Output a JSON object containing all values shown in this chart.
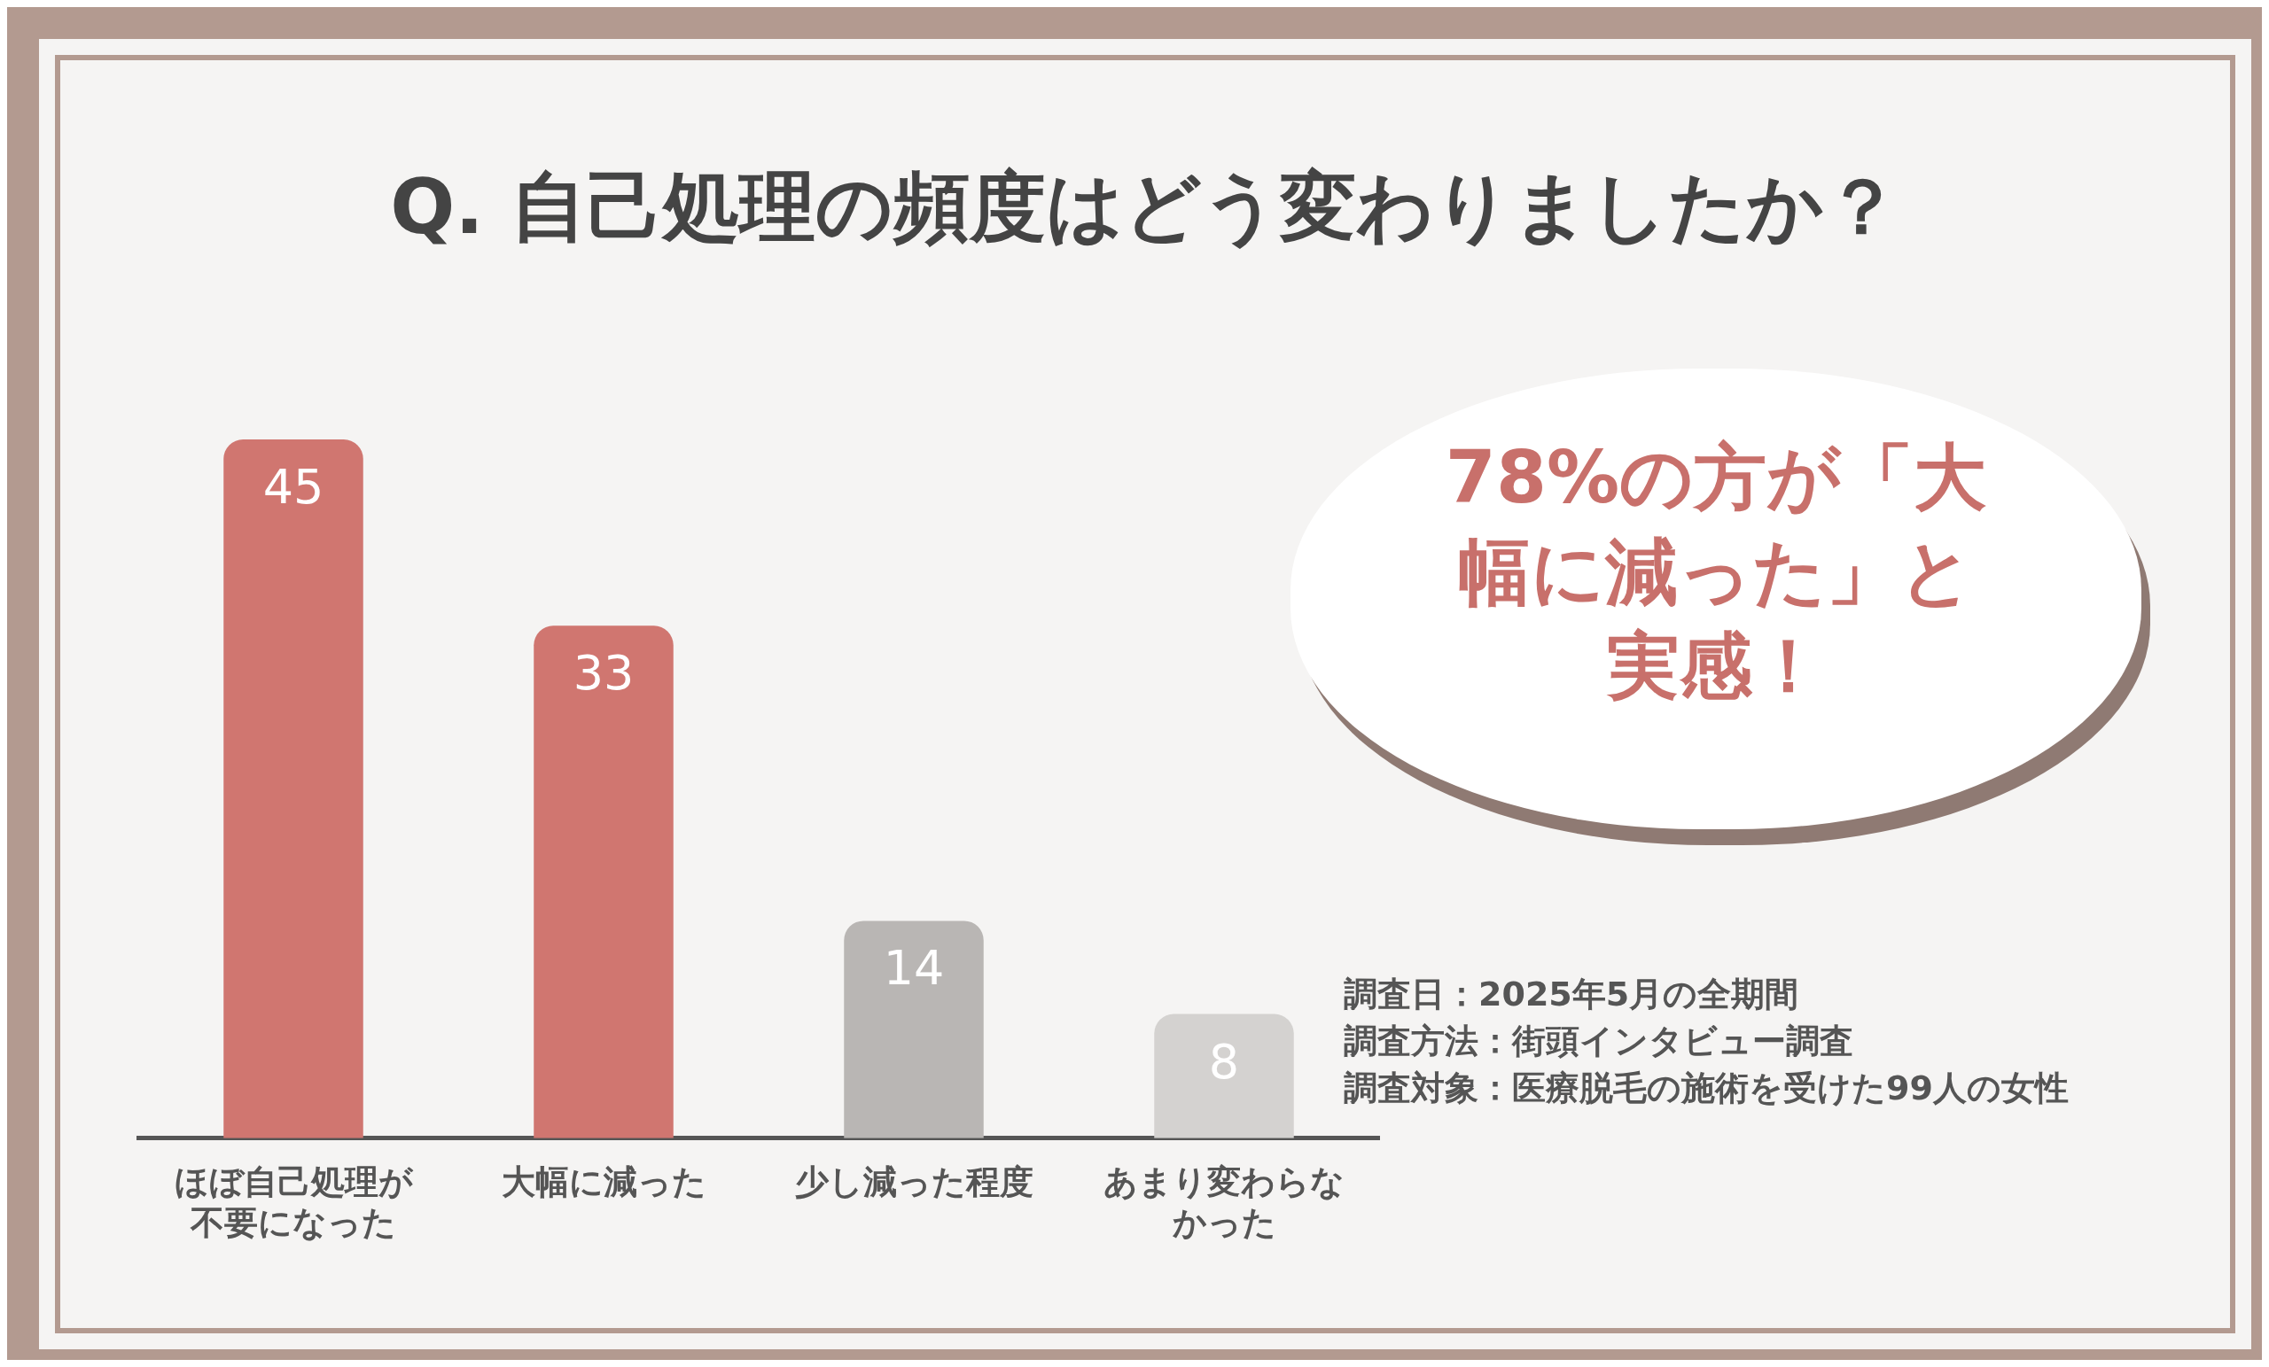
{
  "chart_data": {
    "type": "bar",
    "title": "Q. 自己処理の頻度はどう変わりましたか？",
    "categories": [
      "ほぼ自己処理が不要になった",
      "大幅に減った",
      "少し減った程度",
      "あまり変わらなかった"
    ],
    "values": [
      45,
      33,
      14,
      8
    ],
    "colors": [
      "#d07670",
      "#d07670",
      "#b9b6b4",
      "#d4d2d0"
    ],
    "tick_labels": "x",
    "grid": false,
    "legend": false,
    "data_labels": true,
    "annotations": [
      "78%の方が「大幅に減った」と実感！",
      "調査日：2025年5月の全期間",
      "調査方法：街頭インタビュー調査",
      "調査対象：医療脱毛の施術を受けた99人の女性"
    ]
  }
}
